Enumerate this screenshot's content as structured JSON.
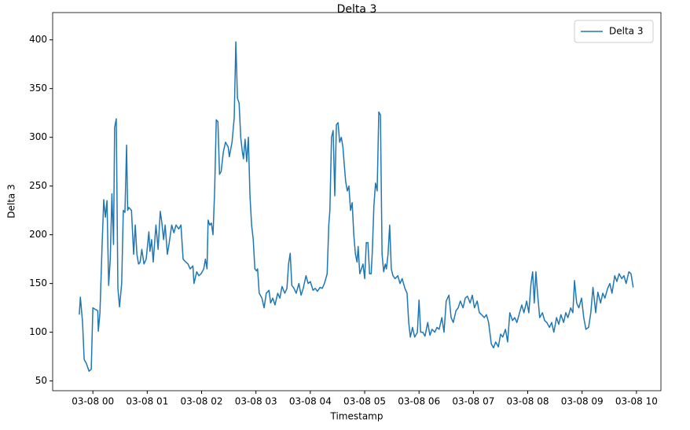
{
  "chart_data": {
    "type": "line",
    "title": "Delta 3",
    "xlabel": "Timestamp",
    "ylabel": "Delta 3",
    "legend": "upper right",
    "grid": false,
    "xlim": [
      -0.74,
      10.45
    ],
    "ylim": [
      40,
      428
    ],
    "xticks": [
      {
        "value": 0,
        "label": "03-08 00"
      },
      {
        "value": 1,
        "label": "03-08 01"
      },
      {
        "value": 2,
        "label": "03-08 02"
      },
      {
        "value": 3,
        "label": "03-08 03"
      },
      {
        "value": 4,
        "label": "03-08 04"
      },
      {
        "value": 5,
        "label": "03-08 05"
      },
      {
        "value": 6,
        "label": "03-08 06"
      },
      {
        "value": 7,
        "label": "03-08 07"
      },
      {
        "value": 8,
        "label": "03-08 08"
      },
      {
        "value": 9,
        "label": "03-08 09"
      },
      {
        "value": 10,
        "label": "03-08 10"
      }
    ],
    "yticks": [
      50,
      100,
      150,
      200,
      250,
      300,
      350,
      400
    ],
    "x": [
      -0.25,
      -0.23,
      -0.19,
      -0.16,
      -0.12,
      -0.07,
      -0.03,
      0.0,
      0.03,
      0.09,
      0.1,
      0.13,
      0.17,
      0.2,
      0.23,
      0.26,
      0.29,
      0.32,
      0.35,
      0.38,
      0.4,
      0.43,
      0.46,
      0.49,
      0.53,
      0.56,
      0.59,
      0.62,
      0.64,
      0.66,
      0.71,
      0.75,
      0.78,
      0.81,
      0.84,
      0.87,
      0.9,
      0.94,
      0.98,
      1.03,
      1.05,
      1.08,
      1.11,
      1.16,
      1.2,
      1.24,
      1.27,
      1.3,
      1.33,
      1.37,
      1.4,
      1.45,
      1.49,
      1.53,
      1.58,
      1.62,
      1.66,
      1.71,
      1.75,
      1.79,
      1.84,
      1.86,
      1.91,
      1.95,
      1.99,
      2.04,
      2.07,
      2.1,
      2.12,
      2.15,
      2.18,
      2.21,
      2.24,
      2.27,
      2.3,
      2.33,
      2.36,
      2.4,
      2.44,
      2.49,
      2.51,
      2.56,
      2.6,
      2.63,
      2.66,
      2.69,
      2.72,
      2.75,
      2.77,
      2.8,
      2.83,
      2.86,
      2.89,
      2.92,
      2.95,
      2.98,
      3.01,
      3.03,
      3.06,
      3.11,
      3.15,
      3.19,
      3.24,
      3.27,
      3.31,
      3.35,
      3.4,
      3.44,
      3.48,
      3.53,
      3.57,
      3.6,
      3.63,
      3.66,
      3.7,
      3.74,
      3.79,
      3.83,
      3.87,
      3.92,
      3.96,
      4.0,
      4.05,
      4.09,
      4.13,
      4.18,
      4.22,
      4.26,
      4.31,
      4.34,
      4.36,
      4.39,
      4.42,
      4.45,
      4.48,
      4.51,
      4.54,
      4.57,
      4.6,
      4.62,
      4.65,
      4.68,
      4.71,
      4.74,
      4.77,
      4.8,
      4.83,
      4.86,
      4.88,
      4.91,
      4.94,
      4.97,
      5.0,
      5.03,
      5.06,
      5.09,
      5.12,
      5.14,
      5.17,
      5.2,
      5.23,
      5.26,
      5.29,
      5.32,
      5.35,
      5.38,
      5.4,
      5.43,
      5.46,
      5.49,
      5.52,
      5.56,
      5.61,
      5.65,
      5.69,
      5.74,
      5.78,
      5.81,
      5.84,
      5.88,
      5.92,
      5.97,
      6.0,
      6.03,
      6.07,
      6.11,
      6.16,
      6.2,
      6.24,
      6.29,
      6.33,
      6.37,
      6.42,
      6.46,
      6.5,
      6.55,
      6.59,
      6.63,
      6.68,
      6.72,
      6.76,
      6.81,
      6.85,
      6.89,
      6.94,
      6.98,
      7.02,
      7.07,
      7.11,
      7.15,
      7.2,
      7.24,
      7.28,
      7.33,
      7.37,
      7.41,
      7.46,
      7.5,
      7.54,
      7.59,
      7.63,
      7.67,
      7.72,
      7.76,
      7.8,
      7.85,
      7.89,
      7.93,
      7.98,
      8.02,
      8.06,
      8.09,
      8.12,
      8.15,
      8.18,
      8.22,
      8.27,
      8.31,
      8.35,
      8.4,
      8.44,
      8.48,
      8.53,
      8.57,
      8.61,
      8.66,
      8.7,
      8.74,
      8.79,
      8.83,
      8.86,
      8.9,
      8.94,
      8.99,
      9.03,
      9.07,
      9.12,
      9.16,
      9.2,
      9.25,
      9.29,
      9.34,
      9.38,
      9.42,
      9.47,
      9.51,
      9.55,
      9.6,
      9.64,
      9.68,
      9.73,
      9.77,
      9.81,
      9.86,
      9.9,
      9.94
    ],
    "series": [
      {
        "name": "Delta 3",
        "color": "#1f77b4",
        "values": [
          118,
          136,
          110,
          72,
          68,
          60,
          62,
          125,
          124,
          122,
          101,
          120,
          190,
          236,
          218,
          235,
          148,
          175,
          242,
          190,
          310,
          319,
          145,
          126,
          150,
          225,
          223,
          292,
          225,
          228,
          225,
          180,
          210,
          180,
          170,
          172,
          185,
          170,
          175,
          203,
          183,
          195,
          172,
          210,
          185,
          224,
          212,
          195,
          210,
          180,
          190,
          210,
          202,
          210,
          206,
          210,
          175,
          172,
          170,
          165,
          168,
          150,
          162,
          158,
          160,
          165,
          175,
          165,
          215,
          210,
          212,
          200,
          245,
          318,
          316,
          262,
          265,
          285,
          295,
          290,
          280,
          295,
          320,
          398,
          340,
          335,
          300,
          285,
          278,
          298,
          275,
          300,
          240,
          210,
          195,
          165,
          163,
          165,
          140,
          135,
          125,
          140,
          143,
          130,
          135,
          128,
          140,
          135,
          147,
          140,
          145,
          170,
          181,
          148,
          145,
          140,
          150,
          138,
          145,
          158,
          150,
          152,
          143,
          145,
          142,
          146,
          145,
          150,
          160,
          210,
          225,
          300,
          307,
          240,
          313,
          315,
          295,
          300,
          290,
          275,
          255,
          245,
          250,
          225,
          233,
          200,
          180,
          172,
          188,
          160,
          165,
          170,
          155,
          192,
          192,
          160,
          160,
          182,
          230,
          253,
          245,
          326,
          323,
          180,
          162,
          170,
          165,
          180,
          210,
          165,
          158,
          155,
          158,
          150,
          155,
          145,
          140,
          110,
          95,
          105,
          95,
          100,
          133,
          100,
          100,
          96,
          110,
          97,
          103,
          100,
          105,
          103,
          115,
          100,
          132,
          138,
          115,
          110,
          122,
          125,
          132,
          125,
          135,
          137,
          130,
          138,
          125,
          132,
          120,
          118,
          115,
          118,
          110,
          88,
          84,
          90,
          85,
          98,
          95,
          103,
          90,
          120,
          112,
          115,
          110,
          120,
          128,
          120,
          132,
          120,
          150,
          162,
          130,
          162,
          140,
          115,
          120,
          112,
          110,
          105,
          110,
          100,
          115,
          108,
          118,
          110,
          120,
          115,
          125,
          120,
          153,
          130,
          125,
          135,
          115,
          103,
          105,
          120,
          146,
          120,
          141,
          130,
          140,
          135,
          145,
          150,
          140,
          158,
          152,
          160,
          155,
          158,
          150,
          162,
          160,
          146
        ]
      }
    ]
  }
}
